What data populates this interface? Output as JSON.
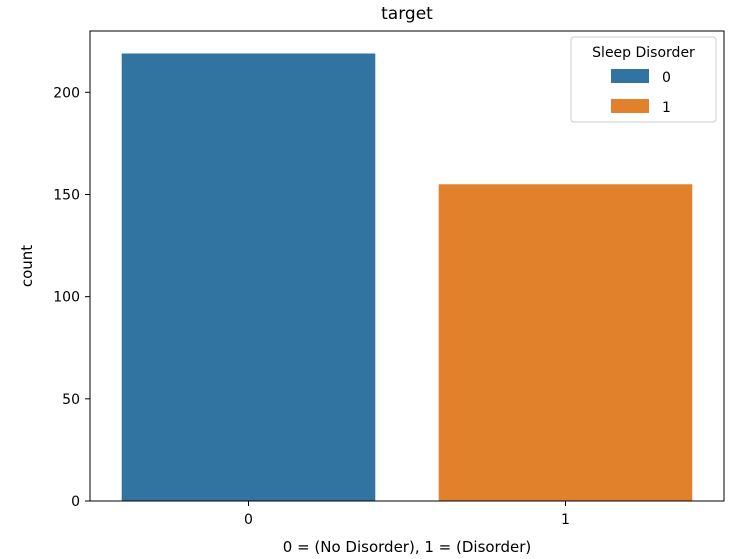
{
  "chart_data": {
    "type": "bar",
    "title": "target",
    "xlabel": "0 = (No Disorder), 1 = (Disorder)",
    "ylabel": "count",
    "categories": [
      "0",
      "1"
    ],
    "series": [
      {
        "name": "0",
        "values": [
          219,
          null
        ],
        "color": "#3274a1"
      },
      {
        "name": "1",
        "values": [
          null,
          155
        ],
        "color": "#e1812c"
      }
    ],
    "ylim": [
      0,
      230
    ],
    "yticks": [
      0,
      50,
      100,
      150,
      200
    ],
    "grid": false,
    "legend": {
      "title": "Sleep Disorder",
      "placement": "top-right",
      "entries": [
        {
          "label": "0",
          "color": "#3274a1"
        },
        {
          "label": "1",
          "color": "#e1812c"
        }
      ]
    }
  }
}
